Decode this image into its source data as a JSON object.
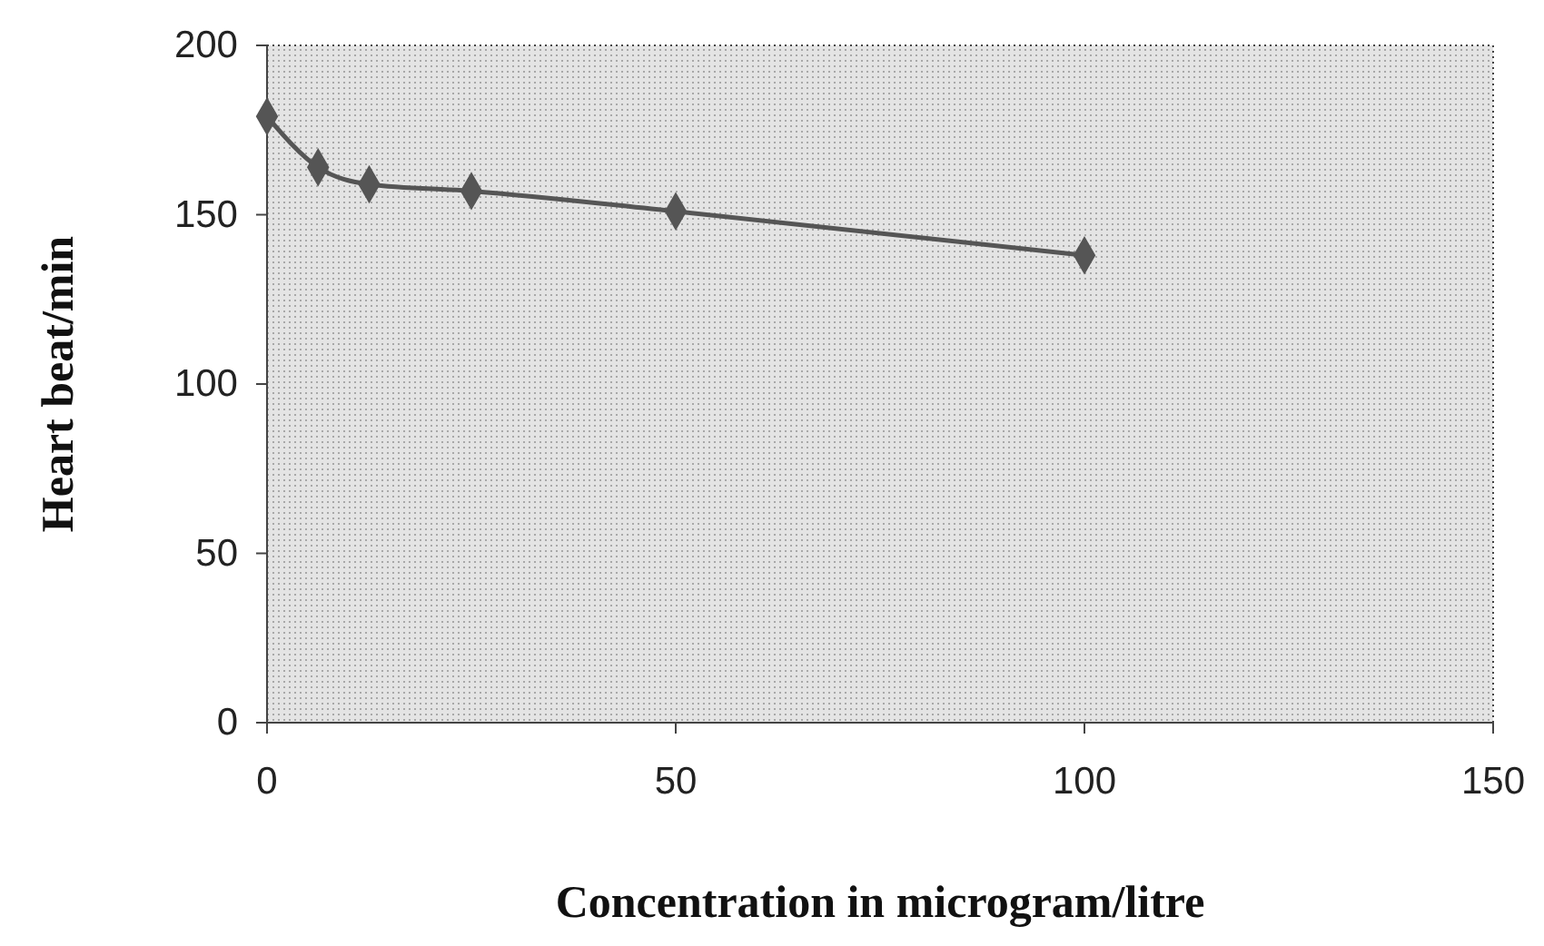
{
  "chart_data": {
    "type": "line",
    "xlabel": "Concentration in microgram/litre",
    "ylabel": "Heart beat/min",
    "x": [
      0,
      6.25,
      12.5,
      25,
      50,
      100
    ],
    "series": [
      {
        "color": "#555555",
        "values": [
          179,
          164,
          159,
          157,
          151,
          138
        ]
      }
    ],
    "xlim": [
      0,
      150
    ],
    "xticks": [
      0,
      50,
      100,
      150
    ],
    "ylim": [
      0,
      200
    ],
    "yticks": [
      0,
      50,
      100,
      150,
      200
    ],
    "grid": false,
    "marker": "diamond",
    "line_style": "solid"
  }
}
